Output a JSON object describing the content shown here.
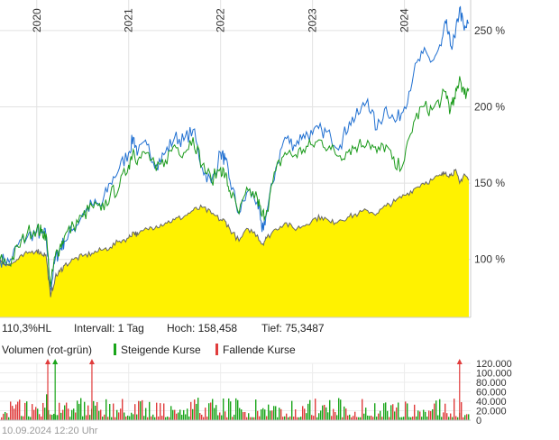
{
  "chart_data": [
    {
      "type": "line",
      "x_ticks": [
        "2020",
        "2021",
        "2022",
        "2023",
        "2024"
      ],
      "y_ticks": [
        "100 %",
        "150 %",
        "200 %",
        "250 %"
      ],
      "y_tick_values": [
        100,
        150,
        200,
        250
      ],
      "ylim": [
        62,
        270
      ],
      "xlim": [
        2019.6,
        2024.72
      ],
      "grid": true,
      "series": [
        {
          "color": "#1f6fd1",
          "x": [
            2019.6,
            2019.7,
            2019.8,
            2019.9,
            2020.0,
            2020.05,
            2020.1,
            2020.15,
            2020.2,
            2020.25,
            2020.3,
            2020.4,
            2020.5,
            2020.6,
            2020.7,
            2020.8,
            2020.9,
            2021.0,
            2021.05,
            2021.1,
            2021.2,
            2021.3,
            2021.4,
            2021.5,
            2021.6,
            2021.7,
            2021.8,
            2021.9,
            2022.0,
            2022.05,
            2022.1,
            2022.2,
            2022.3,
            2022.4,
            2022.45,
            2022.5,
            2022.6,
            2022.7,
            2022.8,
            2022.9,
            2023.0,
            2023.1,
            2023.2,
            2023.3,
            2023.4,
            2023.5,
            2023.6,
            2023.7,
            2023.8,
            2023.9,
            2024.0,
            2024.1,
            2024.2,
            2024.3,
            2024.4,
            2024.45,
            2024.5,
            2024.55,
            2024.6,
            2024.65,
            2024.7
          ],
          "y": [
            100,
            98,
            110,
            115,
            118,
            117,
            116,
            80,
            100,
            106,
            112,
            120,
            130,
            136,
            135,
            150,
            160,
            170,
            180,
            170,
            175,
            162,
            170,
            180,
            178,
            185,
            160,
            150,
            170,
            165,
            152,
            130,
            145,
            138,
            118,
            130,
            160,
            180,
            175,
            182,
            182,
            185,
            180,
            175,
            190,
            195,
            205,
            185,
            200,
            190,
            200,
            222,
            235,
            230,
            240,
            255,
            240,
            245,
            265,
            250,
            255
          ]
        },
        {
          "color": "#1a9a1a",
          "x": [
            2019.6,
            2019.7,
            2019.8,
            2019.9,
            2020.0,
            2020.05,
            2020.1,
            2020.15,
            2020.2,
            2020.25,
            2020.3,
            2020.4,
            2020.5,
            2020.6,
            2020.7,
            2020.8,
            2020.9,
            2021.0,
            2021.05,
            2021.1,
            2021.2,
            2021.3,
            2021.4,
            2021.5,
            2021.6,
            2021.7,
            2021.8,
            2021.9,
            2022.0,
            2022.05,
            2022.1,
            2022.2,
            2022.3,
            2022.4,
            2022.45,
            2022.5,
            2022.6,
            2022.7,
            2022.8,
            2022.9,
            2023.0,
            2023.1,
            2023.2,
            2023.3,
            2023.4,
            2023.5,
            2023.6,
            2023.7,
            2023.8,
            2023.9,
            2024.0,
            2024.1,
            2024.2,
            2024.3,
            2024.4,
            2024.45,
            2024.5,
            2024.55,
            2024.6,
            2024.65,
            2024.7
          ],
          "y": [
            100,
            97,
            108,
            118,
            120,
            118,
            117,
            82,
            102,
            108,
            115,
            122,
            128,
            135,
            132,
            142,
            148,
            162,
            172,
            165,
            170,
            158,
            165,
            175,
            170,
            180,
            162,
            152,
            160,
            155,
            145,
            130,
            145,
            140,
            128,
            132,
            158,
            170,
            168,
            172,
            175,
            178,
            172,
            168,
            172,
            175,
            178,
            170,
            175,
            160,
            165,
            190,
            200,
            198,
            205,
            210,
            198,
            205,
            220,
            208,
            212
          ]
        },
        {
          "color": "#666666",
          "fill": "#fff200",
          "x": [
            2019.6,
            2019.7,
            2019.8,
            2019.9,
            2020.0,
            2020.05,
            2020.1,
            2020.15,
            2020.2,
            2020.25,
            2020.3,
            2020.4,
            2020.5,
            2020.6,
            2020.7,
            2020.8,
            2020.9,
            2021.0,
            2021.05,
            2021.1,
            2021.2,
            2021.3,
            2021.4,
            2021.5,
            2021.6,
            2021.7,
            2021.8,
            2021.9,
            2022.0,
            2022.05,
            2022.1,
            2022.2,
            2022.3,
            2022.4,
            2022.45,
            2022.5,
            2022.6,
            2022.7,
            2022.8,
            2022.9,
            2023.0,
            2023.1,
            2023.2,
            2023.3,
            2023.4,
            2023.5,
            2023.6,
            2023.7,
            2023.8,
            2023.9,
            2024.0,
            2024.1,
            2024.2,
            2024.3,
            2024.4,
            2024.45,
            2024.5,
            2024.55,
            2024.6,
            2024.65,
            2024.7
          ],
          "y": [
            100,
            96,
            100,
            104,
            106,
            104,
            103,
            75.3,
            88,
            92,
            96,
            100,
            102,
            104,
            106,
            108,
            112,
            114,
            118,
            116,
            120,
            122,
            124,
            126,
            128,
            132,
            134,
            130,
            126,
            125,
            120,
            112,
            120,
            116,
            110,
            114,
            120,
            124,
            120,
            122,
            126,
            128,
            124,
            126,
            128,
            130,
            132,
            130,
            135,
            138,
            142,
            146,
            150,
            152,
            155,
            157,
            155,
            158.5,
            150,
            156,
            152
          ]
        }
      ]
    },
    {
      "type": "bar",
      "title": "Volumen (rot-grün)",
      "legend": [
        {
          "label": "Steigende Kurse",
          "color": "#1aa51a"
        },
        {
          "label": "Fallende Kurse",
          "color": "#e03c3c"
        }
      ],
      "y_ticks": [
        "120.000",
        "100.000",
        "80.000",
        "60.000",
        "40.000",
        "20.000",
        "0"
      ],
      "y_tick_values": [
        120000,
        100000,
        80000,
        60000,
        40000,
        20000,
        0
      ],
      "ylim": [
        0,
        120000
      ],
      "grid": true,
      "spikes": [
        {
          "x": 2020.12,
          "value": 125000,
          "color": "#e03c3c"
        },
        {
          "x": 2020.2,
          "value": 125000,
          "color": "#1aa51a"
        },
        {
          "x": 2020.6,
          "value": 125000,
          "color": "#e03c3c"
        },
        {
          "x": 2024.6,
          "value": 125000,
          "color": "#e03c3c"
        }
      ]
    }
  ],
  "info": {
    "hl_ratio": "110,3%HL",
    "interval": "Intervall: 1 Tag",
    "high": "Hoch: 158,458",
    "low": "Tief: 75,3487"
  },
  "footer": "10.09.2024 12:20 Uhr"
}
